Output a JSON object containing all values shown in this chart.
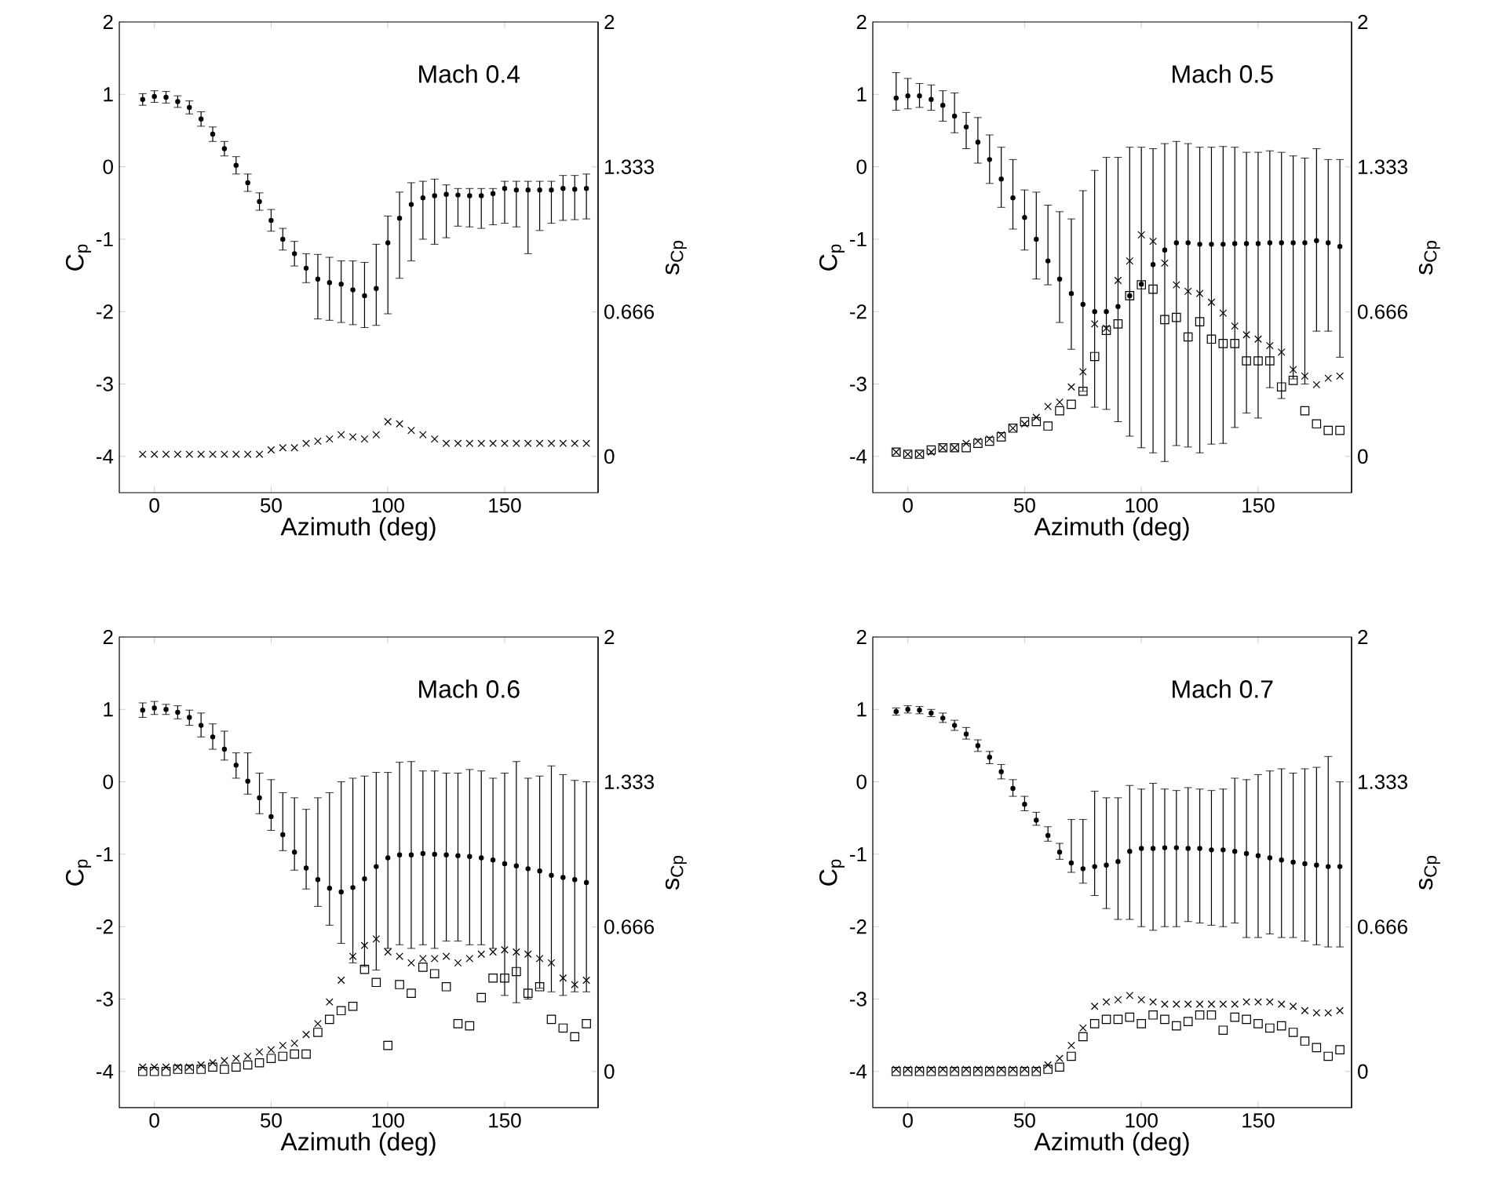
{
  "chart_data": [
    {
      "type": "scatter",
      "xlabel": "Azimuth (deg)",
      "ylabel": "C$_{p}$",
      "y2label": "s$_{Cp}$",
      "annotations": [
        "Mach 0.4"
      ],
      "x": [
        -5,
        0,
        5,
        10,
        15,
        20,
        25,
        30,
        35,
        40,
        45,
        50,
        55,
        60,
        65,
        70,
        75,
        80,
        85,
        90,
        95,
        100,
        105,
        110,
        115,
        120,
        125,
        130,
        135,
        140,
        145,
        150,
        155,
        160,
        165,
        170,
        175,
        180,
        185
      ],
      "xlim": [
        -15,
        190
      ],
      "ylim": [
        -4.5,
        2
      ],
      "y2lim": [
        -0.16667,
        2
      ],
      "xticks": [
        0,
        50,
        100,
        150
      ],
      "yticks": [
        -4,
        -3,
        -2,
        -1,
        0,
        1,
        2
      ],
      "y2ticks": [
        0,
        0.666,
        1.333,
        2
      ],
      "series": [
        {
          "color": "#000000",
          "marker": "circle",
          "values": [
            0.93,
            0.97,
            0.96,
            0.9,
            0.82,
            0.66,
            0.45,
            0.25,
            0.02,
            -0.22,
            -0.48,
            -0.74,
            -1.0,
            -1.2,
            -1.4,
            -1.55,
            -1.6,
            -1.62,
            -1.7,
            -1.78,
            -1.68,
            -1.05,
            -0.71,
            -0.52,
            -0.43,
            -0.4,
            -0.38,
            -0.39,
            -0.4,
            -0.4,
            -0.37,
            -0.3,
            -0.32,
            -0.32,
            -0.32,
            -0.32,
            -0.3,
            -0.31,
            -0.3
          ],
          "errors": [
            [
              0.85,
              1.01
            ],
            [
              0.89,
              1.05
            ],
            [
              0.88,
              1.04
            ],
            [
              0.82,
              0.98
            ],
            [
              0.73,
              0.91
            ],
            [
              0.56,
              0.76
            ],
            [
              0.35,
              0.55
            ],
            [
              0.15,
              0.35
            ],
            [
              -0.1,
              0.14
            ],
            [
              -0.34,
              -0.1
            ],
            [
              -0.6,
              -0.36
            ],
            [
              -0.89,
              -0.59
            ],
            [
              -1.15,
              -0.85
            ],
            [
              -1.37,
              -1.03
            ],
            [
              -1.6,
              -1.2
            ],
            [
              -2.1,
              -1.21
            ],
            [
              -2.12,
              -1.25
            ],
            [
              -2.15,
              -1.3
            ],
            [
              -2.18,
              -1.3
            ],
            [
              -2.22,
              -1.32
            ],
            [
              -2.19,
              -1.07
            ],
            [
              -2.03,
              -0.68
            ],
            [
              -1.54,
              -0.35
            ],
            [
              -1.3,
              -0.22
            ],
            [
              -1.0,
              -0.2
            ],
            [
              -1.07,
              -0.17
            ],
            [
              -0.98,
              -0.25
            ],
            [
              -0.82,
              -0.3
            ],
            [
              -0.83,
              -0.3
            ],
            [
              -0.85,
              -0.3
            ],
            [
              -0.8,
              -0.3
            ],
            [
              -0.78,
              -0.2
            ],
            [
              -0.83,
              -0.2
            ],
            [
              -1.2,
              -0.2
            ],
            [
              -0.88,
              -0.2
            ],
            [
              -0.78,
              -0.2
            ],
            [
              -0.74,
              -0.12
            ],
            [
              -0.73,
              -0.12
            ],
            [
              -0.72,
              -0.1
            ]
          ]
        },
        {
          "color": "#000000",
          "marker": "cross",
          "axis": "y2",
          "values": [
            0.01,
            0.01,
            0.01,
            0.01,
            0.01,
            0.01,
            0.01,
            0.01,
            0.01,
            0.01,
            0.01,
            0.03,
            0.04,
            0.04,
            0.06,
            0.07,
            0.08,
            0.1,
            0.09,
            0.08,
            0.1,
            0.16,
            0.15,
            0.12,
            0.1,
            0.08,
            0.06,
            0.06,
            0.06,
            0.06,
            0.06,
            0.06,
            0.06,
            0.06,
            0.06,
            0.06,
            0.06,
            0.06,
            0.06
          ]
        }
      ]
    },
    {
      "type": "scatter",
      "xlabel": "Azimuth (deg)",
      "ylabel": "C$_{p}$",
      "y2label": "s$_{Cp}$",
      "annotations": [
        "Mach 0.5"
      ],
      "x": [
        -5,
        0,
        5,
        10,
        15,
        20,
        25,
        30,
        35,
        40,
        45,
        50,
        55,
        60,
        65,
        70,
        75,
        80,
        85,
        90,
        95,
        100,
        105,
        110,
        115,
        120,
        125,
        130,
        135,
        140,
        145,
        150,
        155,
        160,
        165,
        170,
        175,
        180,
        185
      ],
      "xlim": [
        -15,
        190
      ],
      "ylim": [
        -4.5,
        2
      ],
      "y2lim": [
        -0.16667,
        2
      ],
      "xticks": [
        0,
        50,
        100,
        150
      ],
      "yticks": [
        -4,
        -3,
        -2,
        -1,
        0,
        1,
        2
      ],
      "y2ticks": [
        0,
        0.666,
        1.333,
        2
      ],
      "series": [
        {
          "color": "#000000",
          "marker": "circle",
          "values": [
            0.95,
            0.98,
            0.98,
            0.93,
            0.85,
            0.7,
            0.55,
            0.34,
            0.1,
            -0.17,
            -0.43,
            -0.7,
            -1.0,
            -1.3,
            -1.55,
            -1.75,
            -1.9,
            -2.0,
            -2.0,
            -1.93,
            -1.78,
            -1.62,
            -1.35,
            -1.15,
            -1.05,
            -1.05,
            -1.07,
            -1.07,
            -1.07,
            -1.06,
            -1.06,
            -1.06,
            -1.05,
            -1.05,
            -1.05,
            -1.05,
            -1.02,
            -1.05,
            -1.1
          ],
          "errors": [
            [
              0.78,
              1.3
            ],
            [
              0.8,
              1.22
            ],
            [
              0.82,
              1.15
            ],
            [
              0.78,
              1.13
            ],
            [
              0.63,
              1.05
            ],
            [
              0.47,
              1.02
            ],
            [
              0.25,
              0.75
            ],
            [
              0.05,
              0.68
            ],
            [
              -0.23,
              0.44
            ],
            [
              -0.56,
              0.27
            ],
            [
              -0.86,
              0.1
            ],
            [
              -1.15,
              -0.32
            ],
            [
              -1.55,
              -0.35
            ],
            [
              -1.63,
              -0.53
            ],
            [
              -2.15,
              -0.62
            ],
            [
              -2.52,
              -0.72
            ],
            [
              -3.1,
              -0.33
            ],
            [
              -3.32,
              -0.05
            ],
            [
              -3.35,
              0.13
            ],
            [
              -3.52,
              0.13
            ],
            [
              -3.72,
              0.27
            ],
            [
              -3.88,
              0.27
            ],
            [
              -3.95,
              0.25
            ],
            [
              -4.07,
              0.32
            ],
            [
              -3.85,
              0.35
            ],
            [
              -3.87,
              0.32
            ],
            [
              -3.95,
              0.27
            ],
            [
              -3.83,
              0.27
            ],
            [
              -3.82,
              0.28
            ],
            [
              -3.6,
              0.27
            ],
            [
              -3.4,
              0.2
            ],
            [
              -3.47,
              0.2
            ],
            [
              -3.05,
              0.22
            ],
            [
              -3.2,
              0.2
            ],
            [
              -2.93,
              0.15
            ],
            [
              -3.0,
              0.12
            ],
            [
              -2.27,
              0.25
            ],
            [
              -2.27,
              0.1
            ],
            [
              -2.63,
              0.1
            ]
          ]
        },
        {
          "color": "#000000",
          "marker": "cross",
          "axis": "y2",
          "values": [
            0.02,
            0.01,
            0.01,
            0.02,
            0.04,
            0.04,
            0.06,
            0.07,
            0.08,
            0.1,
            0.13,
            0.15,
            0.18,
            0.23,
            0.25,
            0.32,
            0.39,
            0.61,
            0.59,
            0.81,
            0.9,
            1.02,
            0.99,
            0.89,
            0.79,
            0.76,
            0.75,
            0.71,
            0.66,
            0.6,
            0.56,
            0.54,
            0.51,
            0.48,
            0.4,
            0.37,
            0.33,
            0.36,
            0.37
          ]
        },
        {
          "color": "#000000",
          "marker": "square",
          "axis": "y2",
          "values": [
            0.02,
            0.01,
            0.01,
            0.03,
            0.04,
            0.04,
            0.04,
            0.06,
            0.07,
            0.09,
            0.13,
            0.16,
            0.16,
            0.14,
            0.21,
            0.24,
            0.3,
            0.46,
            0.58,
            0.61,
            0.74,
            0.79,
            0.77,
            0.63,
            0.64,
            0.55,
            0.62,
            0.54,
            0.52,
            0.52,
            0.44,
            0.44,
            0.44,
            0.32,
            0.35,
            0.21,
            0.15,
            0.12,
            0.12
          ]
        }
      ]
    },
    {
      "type": "scatter",
      "xlabel": "Azimuth (deg)",
      "ylabel": "C$_{p}$",
      "y2label": "s$_{Cp}$",
      "annotations": [
        "Mach 0.6"
      ],
      "x": [
        -5,
        0,
        5,
        10,
        15,
        20,
        25,
        30,
        35,
        40,
        45,
        50,
        55,
        60,
        65,
        70,
        75,
        80,
        85,
        90,
        95,
        100,
        105,
        110,
        115,
        120,
        125,
        130,
        135,
        140,
        145,
        150,
        155,
        160,
        165,
        170,
        175,
        180,
        185
      ],
      "xlim": [
        -15,
        190
      ],
      "ylim": [
        -4.5,
        2
      ],
      "y2lim": [
        -0.16667,
        2
      ],
      "xticks": [
        0,
        50,
        100,
        150
      ],
      "yticks": [
        -4,
        -3,
        -2,
        -1,
        0,
        1,
        2
      ],
      "y2ticks": [
        0,
        0.666,
        1.333,
        2
      ],
      "series": [
        {
          "color": "#000000",
          "marker": "circle",
          "values": [
            0.99,
            1.02,
            1.0,
            0.96,
            0.89,
            0.78,
            0.62,
            0.45,
            0.23,
            0.01,
            -0.22,
            -0.48,
            -0.73,
            -0.97,
            -1.19,
            -1.35,
            -1.47,
            -1.52,
            -1.46,
            -1.34,
            -1.17,
            -1.05,
            -1.01,
            -1.01,
            -0.99,
            -1.0,
            -1.01,
            -1.02,
            -1.03,
            -1.05,
            -1.08,
            -1.13,
            -1.16,
            -1.2,
            -1.23,
            -1.29,
            -1.32,
            -1.35,
            -1.39
          ],
          "errors": [
            [
              0.89,
              1.09
            ],
            [
              0.93,
              1.11
            ],
            [
              0.93,
              1.07
            ],
            [
              0.87,
              1.05
            ],
            [
              0.78,
              0.99
            ],
            [
              0.62,
              0.95
            ],
            [
              0.45,
              0.8
            ],
            [
              0.3,
              0.7
            ],
            [
              0.05,
              0.4
            ],
            [
              -0.17,
              0.4
            ],
            [
              -0.44,
              0.12
            ],
            [
              -0.67,
              0.03
            ],
            [
              -0.95,
              -0.15
            ],
            [
              -1.22,
              -0.22
            ],
            [
              -1.48,
              -0.38
            ],
            [
              -1.72,
              -0.22
            ],
            [
              -1.98,
              -0.15
            ],
            [
              -2.23,
              0.0
            ],
            [
              -2.5,
              0.05
            ],
            [
              -2.55,
              0.08
            ],
            [
              -2.6,
              0.13
            ],
            [
              -2.3,
              0.13
            ],
            [
              -2.25,
              0.27
            ],
            [
              -2.3,
              0.28
            ],
            [
              -2.25,
              0.15
            ],
            [
              -2.3,
              0.15
            ],
            [
              -2.2,
              0.12
            ],
            [
              -2.2,
              0.12
            ],
            [
              -2.25,
              0.17
            ],
            [
              -2.25,
              0.15
            ],
            [
              -2.3,
              0.05
            ],
            [
              -2.95,
              0.12
            ],
            [
              -3.05,
              0.28
            ],
            [
              -3.0,
              0.05
            ],
            [
              -2.85,
              0.08
            ],
            [
              -2.9,
              0.22
            ],
            [
              -2.95,
              0.1
            ],
            [
              -2.9,
              0.02
            ],
            [
              -2.9,
              0.0
            ]
          ]
        },
        {
          "color": "#000000",
          "marker": "cross",
          "axis": "y2",
          "values": [
            0.02,
            0.02,
            0.02,
            0.02,
            0.02,
            0.03,
            0.04,
            0.05,
            0.06,
            0.07,
            0.09,
            0.1,
            0.12,
            0.13,
            0.17,
            0.22,
            0.32,
            0.42,
            0.53,
            0.58,
            0.61,
            0.55,
            0.53,
            0.5,
            0.52,
            0.52,
            0.53,
            0.5,
            0.52,
            0.54,
            0.55,
            0.56,
            0.55,
            0.54,
            0.52,
            0.5,
            0.43,
            0.4,
            0.42
          ]
        },
        {
          "color": "#000000",
          "marker": "square",
          "axis": "y2",
          "values": [
            0.0,
            0.0,
            0.0,
            0.01,
            0.01,
            0.01,
            0.02,
            0.01,
            0.02,
            0.03,
            0.04,
            0.06,
            0.07,
            0.08,
            0.08,
            0.18,
            0.24,
            0.28,
            0.3,
            0.47,
            0.41,
            0.12,
            0.4,
            0.36,
            0.48,
            0.45,
            0.39,
            0.22,
            0.21,
            0.34,
            0.43,
            0.43,
            0.46,
            0.36,
            0.39,
            0.24,
            0.2,
            0.16,
            0.22
          ]
        }
      ]
    },
    {
      "type": "scatter",
      "xlabel": "Azimuth (deg)",
      "ylabel": "C$_{p}$",
      "y2label": "s$_{Cp}$",
      "annotations": [
        "Mach 0.7"
      ],
      "x": [
        -5,
        0,
        5,
        10,
        15,
        20,
        25,
        30,
        35,
        40,
        45,
        50,
        55,
        60,
        65,
        70,
        75,
        80,
        85,
        90,
        95,
        100,
        105,
        110,
        115,
        120,
        125,
        130,
        135,
        140,
        145,
        150,
        155,
        160,
        165,
        170,
        175,
        180,
        185
      ],
      "xlim": [
        -15,
        190
      ],
      "ylim": [
        -4.5,
        2
      ],
      "y2lim": [
        -0.16667,
        2
      ],
      "xticks": [
        0,
        50,
        100,
        150
      ],
      "yticks": [
        -4,
        -3,
        -2,
        -1,
        0,
        1,
        2
      ],
      "y2ticks": [
        0,
        0.666,
        1.333,
        2
      ],
      "series": [
        {
          "color": "#000000",
          "marker": "circle",
          "values": [
            0.97,
            1.0,
            0.99,
            0.95,
            0.88,
            0.78,
            0.66,
            0.5,
            0.34,
            0.14,
            -0.09,
            -0.31,
            -0.53,
            -0.74,
            -0.97,
            -1.12,
            -1.2,
            -1.17,
            -1.15,
            -1.1,
            -0.96,
            -0.92,
            -0.92,
            -0.91,
            -0.91,
            -0.92,
            -0.92,
            -0.94,
            -0.94,
            -0.96,
            -0.99,
            -1.02,
            -1.05,
            -1.08,
            -1.11,
            -1.13,
            -1.15,
            -1.17,
            -1.17
          ],
          "errors": [
            [
              0.92,
              1.02
            ],
            [
              0.95,
              1.05
            ],
            [
              0.94,
              1.04
            ],
            [
              0.9,
              1.0
            ],
            [
              0.82,
              0.95
            ],
            [
              0.71,
              0.85
            ],
            [
              0.59,
              0.75
            ],
            [
              0.42,
              0.58
            ],
            [
              0.25,
              0.42
            ],
            [
              0.04,
              0.24
            ],
            [
              -0.2,
              0.03
            ],
            [
              -0.4,
              -0.2
            ],
            [
              -0.6,
              -0.42
            ],
            [
              -0.82,
              -0.62
            ],
            [
              -1.07,
              -0.85
            ],
            [
              -1.25,
              -0.52
            ],
            [
              -1.4,
              -0.52
            ],
            [
              -1.57,
              -0.13
            ],
            [
              -1.75,
              -0.22
            ],
            [
              -1.9,
              -0.22
            ],
            [
              -1.9,
              -0.05
            ],
            [
              -2.0,
              -0.1
            ],
            [
              -2.05,
              -0.02
            ],
            [
              -2.0,
              -0.1
            ],
            [
              -2.0,
              -0.12
            ],
            [
              -1.93,
              -0.08
            ],
            [
              -1.95,
              -0.1
            ],
            [
              -1.98,
              -0.12
            ],
            [
              -2.0,
              -0.1
            ],
            [
              -1.95,
              0.05
            ],
            [
              -2.15,
              0.03
            ],
            [
              -2.15,
              0.1
            ],
            [
              -2.1,
              0.15
            ],
            [
              -2.15,
              0.18
            ],
            [
              -2.15,
              0.12
            ],
            [
              -2.2,
              0.18
            ],
            [
              -2.25,
              0.2
            ],
            [
              -2.28,
              0.35
            ],
            [
              -2.28,
              0.0
            ]
          ]
        },
        {
          "color": "#000000",
          "marker": "cross",
          "axis": "y2",
          "values": [
            0.01,
            0.01,
            0.01,
            0.01,
            0.01,
            0.01,
            0.01,
            0.01,
            0.01,
            0.01,
            0.01,
            0.01,
            0.01,
            0.03,
            0.06,
            0.12,
            0.2,
            0.3,
            0.32,
            0.33,
            0.35,
            0.33,
            0.32,
            0.31,
            0.31,
            0.31,
            0.31,
            0.31,
            0.31,
            0.31,
            0.32,
            0.32,
            0.32,
            0.31,
            0.3,
            0.28,
            0.27,
            0.27,
            0.28
          ]
        },
        {
          "color": "#000000",
          "marker": "square",
          "axis": "y2",
          "values": [
            0.0,
            0.0,
            0.0,
            0.0,
            0.0,
            0.0,
            0.0,
            0.0,
            0.0,
            0.0,
            0.0,
            0.0,
            0.0,
            0.01,
            0.02,
            0.07,
            0.16,
            0.22,
            0.24,
            0.24,
            0.25,
            0.22,
            0.26,
            0.24,
            0.21,
            0.23,
            0.26,
            0.26,
            0.19,
            0.25,
            0.24,
            0.22,
            0.2,
            0.21,
            0.18,
            0.14,
            0.11,
            0.07,
            0.1
          ]
        }
      ]
    }
  ]
}
